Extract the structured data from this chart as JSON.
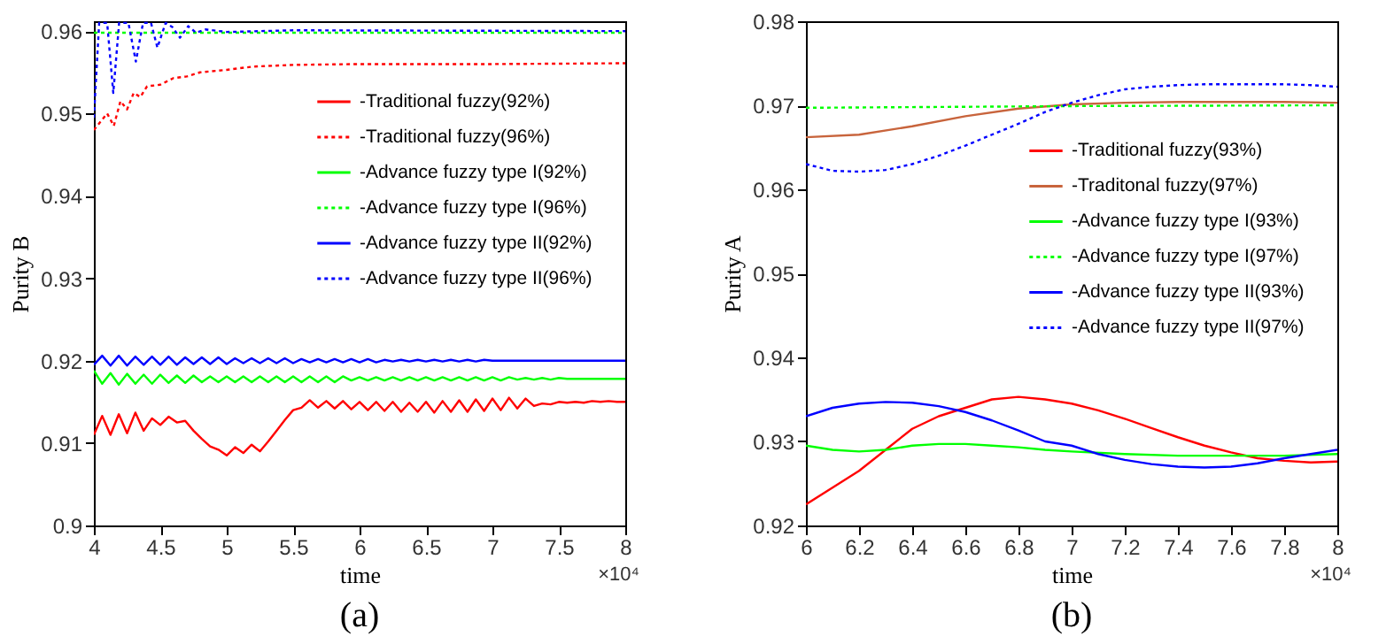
{
  "chart_data": [
    {
      "type": "line",
      "title": "(a)",
      "xlabel": "time",
      "ylabel": "Purity B",
      "annotations": [
        "×10⁴"
      ],
      "legend": "top right",
      "grid": false,
      "xlim": [
        4,
        8
      ],
      "ylim": [
        0.9,
        0.9612
      ],
      "xticks": [
        4,
        4.5,
        5,
        5.5,
        6,
        6.5,
        7,
        7.5,
        8
      ],
      "yticks": [
        0.9,
        0.91,
        0.92,
        0.93,
        0.94,
        0.95,
        0.96
      ],
      "x": [
        4,
        4.0625,
        4.125,
        4.1875,
        4.25,
        4.3125,
        4.375,
        4.4375,
        4.5,
        4.5625,
        4.625,
        4.6875,
        4.75,
        4.8125,
        4.875,
        4.9375,
        5,
        5.0625,
        5.125,
        5.1875,
        5.25,
        5.3125,
        5.375,
        5.4375,
        5.5,
        5.5625,
        5.625,
        5.6875,
        5.75,
        5.8125,
        5.875,
        5.9375,
        6,
        6.0625,
        6.125,
        6.1875,
        6.25,
        6.3125,
        6.375,
        6.4375,
        6.5,
        6.5625,
        6.625,
        6.6875,
        6.75,
        6.8125,
        6.875,
        6.9375,
        7,
        7.0625,
        7.125,
        7.1875,
        7.25,
        7.3125,
        7.375,
        7.4375,
        7.5,
        7.5625,
        7.625,
        7.6875,
        7.75,
        7.8125,
        7.875,
        7.9375,
        8
      ],
      "series": [
        {
          "name": "-Traditional fuzzy(92%)",
          "color": "#ff0000",
          "line_style": "solid",
          "values": [
            0.911,
            0.9133,
            0.911,
            0.9135,
            0.9112,
            0.9137,
            0.9115,
            0.913,
            0.9122,
            0.9132,
            0.9125,
            0.9127,
            0.9115,
            0.9105,
            0.9096,
            0.9092,
            0.9085,
            0.9095,
            0.9088,
            0.9098,
            0.909,
            0.9102,
            0.9115,
            0.9128,
            0.914,
            0.9143,
            0.9152,
            0.9143,
            0.9151,
            0.9142,
            0.9151,
            0.9141,
            0.915,
            0.914,
            0.915,
            0.9139,
            0.915,
            0.9138,
            0.9149,
            0.9138,
            0.915,
            0.9137,
            0.9151,
            0.9138,
            0.9152,
            0.9138,
            0.9153,
            0.9139,
            0.9154,
            0.914,
            0.9155,
            0.9142,
            0.9154,
            0.9145,
            0.9148,
            0.9147,
            0.915,
            0.9149,
            0.915,
            0.9149,
            0.9151,
            0.915,
            0.9151,
            0.915,
            0.915
          ]
        },
        {
          "name": "-Traditional fuzzy(96%)",
          "color": "#ff0000",
          "line_style": "dotted",
          "x": [
            4,
            4.1,
            4.15,
            4.2,
            4.25,
            4.3,
            4.35,
            4.4,
            4.5,
            4.6,
            4.7,
            4.8,
            5,
            5.2,
            5.5,
            6,
            7,
            8
          ],
          "values": [
            0.948,
            0.95,
            0.9485,
            0.9515,
            0.9505,
            0.9525,
            0.952,
            0.9533,
            0.9535,
            0.9543,
            0.9545,
            0.955,
            0.9553,
            0.9557,
            0.9559,
            0.956,
            0.956,
            0.9561
          ]
        },
        {
          "name": "-Advance fuzzy type I(92%)",
          "color": "#00ff00",
          "line_style": "solid",
          "values": [
            0.9188,
            0.9172,
            0.9185,
            0.9171,
            0.9184,
            0.9172,
            0.9183,
            0.9172,
            0.9183,
            0.9173,
            0.9182,
            0.9173,
            0.9182,
            0.9174,
            0.9181,
            0.9174,
            0.9181,
            0.9174,
            0.9181,
            0.9174,
            0.9181,
            0.9174,
            0.9181,
            0.9174,
            0.9181,
            0.9174,
            0.9181,
            0.9174,
            0.9181,
            0.9174,
            0.9181,
            0.9176,
            0.918,
            0.9176,
            0.918,
            0.9176,
            0.918,
            0.9176,
            0.918,
            0.9176,
            0.918,
            0.9176,
            0.918,
            0.9176,
            0.918,
            0.9176,
            0.918,
            0.9176,
            0.918,
            0.9176,
            0.918,
            0.9177,
            0.9179,
            0.9177,
            0.9179,
            0.9177,
            0.9179,
            0.9178,
            0.9178,
            0.9178,
            0.9178,
            0.9178,
            0.9178,
            0.9178,
            0.9178
          ]
        },
        {
          "name": "-Advance fuzzy type I(96%)",
          "color": "#00ff00",
          "line_style": "dotted",
          "x": [
            4,
            6,
            8
          ],
          "values": [
            0.9598,
            0.9598,
            0.9598
          ]
        },
        {
          "name": "-Advance fuzzy type II(92%)",
          "color": "#0000ff",
          "line_style": "solid",
          "values": [
            0.9195,
            0.9206,
            0.9194,
            0.9206,
            0.9194,
            0.9205,
            0.9195,
            0.9205,
            0.9195,
            0.9205,
            0.9195,
            0.9204,
            0.9196,
            0.9204,
            0.9196,
            0.9204,
            0.9196,
            0.9203,
            0.9197,
            0.9203,
            0.9197,
            0.9203,
            0.9197,
            0.9203,
            0.9197,
            0.9202,
            0.9198,
            0.9202,
            0.9198,
            0.9202,
            0.9198,
            0.9202,
            0.9198,
            0.9202,
            0.9198,
            0.9201,
            0.9199,
            0.9201,
            0.9199,
            0.9201,
            0.9199,
            0.9201,
            0.9199,
            0.9201,
            0.9199,
            0.9201,
            0.9199,
            0.9201,
            0.92,
            0.92,
            0.92,
            0.92,
            0.92,
            0.92,
            0.92,
            0.92,
            0.92,
            0.92,
            0.92,
            0.92,
            0.92,
            0.92,
            0.92,
            0.92,
            0.92
          ]
        },
        {
          "name": "-Advance fuzzy type II(96%)",
          "color": "#0000ff",
          "line_style": "dotted",
          "x": [
            4,
            4.04,
            4.1,
            4.146,
            4.19,
            4.26,
            4.316,
            4.37,
            4.43,
            4.478,
            4.54,
            4.59,
            4.648,
            4.71,
            4.77,
            4.84,
            5,
            5.5,
            8
          ],
          "values": [
            0.9495,
            0.961,
            0.961,
            0.9525,
            0.961,
            0.961,
            0.9563,
            0.961,
            0.961,
            0.958,
            0.961,
            0.9605,
            0.9592,
            0.9606,
            0.9598,
            0.9602,
            0.9599,
            0.9601,
            0.96
          ]
        }
      ]
    },
    {
      "type": "line",
      "title": "(b)",
      "xlabel": "time",
      "ylabel": "Purity A",
      "annotations": [
        "×10⁴"
      ],
      "legend": "right",
      "grid": false,
      "xlim": [
        6,
        8
      ],
      "ylim": [
        0.92,
        0.98
      ],
      "xticks": [
        6,
        6.2,
        6.4,
        6.6,
        6.8,
        7,
        7.2,
        7.4,
        7.6,
        7.8,
        8
      ],
      "yticks": [
        0.92,
        0.93,
        0.94,
        0.95,
        0.96,
        0.97,
        0.98
      ],
      "x": [
        6,
        6.1,
        6.2,
        6.3,
        6.4,
        6.5,
        6.6,
        6.7,
        6.8,
        6.9,
        7,
        7.1,
        7.2,
        7.3,
        7.4,
        7.5,
        7.6,
        7.7,
        7.8,
        7.9,
        8
      ],
      "series": [
        {
          "name": "-Traditional fuzzy(93%)",
          "color": "#ff0000",
          "line_style": "solid",
          "values": [
            0.9225,
            0.9245,
            0.9265,
            0.929,
            0.9315,
            0.933,
            0.934,
            0.935,
            0.9353,
            0.935,
            0.9345,
            0.9337,
            0.9327,
            0.9316,
            0.9305,
            0.9295,
            0.9287,
            0.928,
            0.9277,
            0.9275,
            0.9276
          ]
        },
        {
          "name": "-Traditonal fuzzy(97%)",
          "color": "#c8643c",
          "line_style": "solid",
          "x": [
            6,
            6.2,
            6.4,
            6.6,
            6.8,
            7,
            7.2,
            7.4,
            7.6,
            7.8,
            8
          ],
          "values": [
            0.9662,
            0.9665,
            0.9675,
            0.9687,
            0.9696,
            0.9701,
            0.9703,
            0.9704,
            0.9704,
            0.9704,
            0.9703
          ]
        },
        {
          "name": "-Advance fuzzy type I(93%)",
          "color": "#00ff00",
          "line_style": "solid",
          "x": [
            6,
            6.1,
            6.2,
            6.3,
            6.4,
            6.5,
            6.6,
            6.7,
            6.8,
            6.9,
            7,
            7.2,
            7.4,
            7.6,
            7.8,
            8
          ],
          "values": [
            0.9295,
            0.929,
            0.9288,
            0.929,
            0.9295,
            0.9297,
            0.9297,
            0.9295,
            0.9293,
            0.929,
            0.9288,
            0.9285,
            0.9283,
            0.9283,
            0.9283,
            0.9285
          ]
        },
        {
          "name": "-Advance fuzzy type I(97%)",
          "color": "#00ff00",
          "line_style": "dotted",
          "x": [
            6,
            7,
            8
          ],
          "values": [
            0.9697,
            0.9699,
            0.97
          ]
        },
        {
          "name": "-Advance fuzzy type II(93%)",
          "color": "#0000ff",
          "line_style": "solid",
          "values": [
            0.933,
            0.934,
            0.9345,
            0.9347,
            0.9346,
            0.9342,
            0.9335,
            0.9325,
            0.9313,
            0.93,
            0.9295,
            0.9285,
            0.9278,
            0.9273,
            0.927,
            0.9269,
            0.927,
            0.9274,
            0.928,
            0.9285,
            0.929
          ]
        },
        {
          "name": "-Advance fuzzy type II(97%)",
          "color": "#0000ff",
          "line_style": "dotted",
          "values": [
            0.963,
            0.9622,
            0.9621,
            0.9623,
            0.963,
            0.964,
            0.9652,
            0.9665,
            0.9678,
            0.9692,
            0.9703,
            0.9712,
            0.9719,
            0.9722,
            0.9724,
            0.9725,
            0.9725,
            0.9725,
            0.9725,
            0.9724,
            0.9722
          ]
        }
      ]
    }
  ]
}
